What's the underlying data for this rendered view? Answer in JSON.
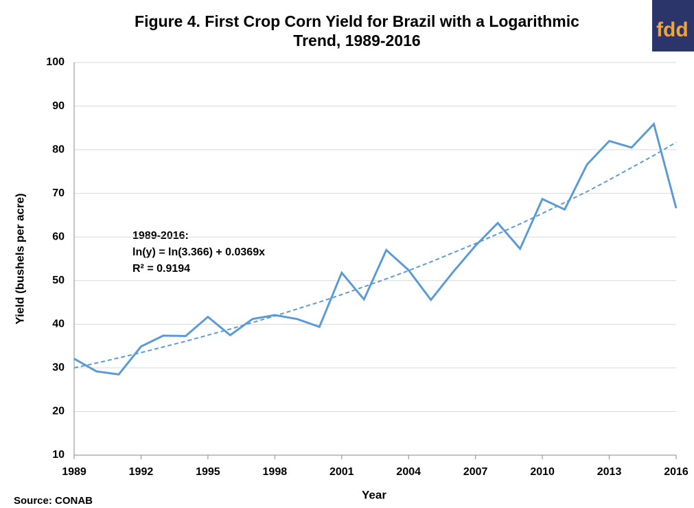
{
  "chart_data": {
    "type": "line",
    "title": [
      "Figure 4. First Crop Corn Yield for Brazil with a Logarithmic",
      "Trend, 1989-2016"
    ],
    "x_label": "Year",
    "y_label": "Yield (bushels per acre)",
    "annotation": [
      "1989-2016:",
      "ln(y) = ln(3.366) + 0.0369x",
      "R² = 0.9194"
    ],
    "source": "Source: CONAB",
    "logo": "fdd",
    "x": [
      1989,
      1990,
      1991,
      1992,
      1993,
      1994,
      1995,
      1996,
      1997,
      1998,
      1999,
      2000,
      2001,
      2002,
      2003,
      2004,
      2005,
      2006,
      2007,
      2008,
      2009,
      2010,
      2011,
      2012,
      2013,
      2014,
      2015,
      2016
    ],
    "series": [
      {
        "color": "#5b9bd5",
        "dashed": false,
        "values": [
          32.1,
          29.2,
          28.5,
          34.9,
          37.4,
          37.3,
          41.7,
          37.5,
          41.2,
          42.1,
          41.2,
          39.4,
          51.8,
          45.7,
          57.0,
          52.4,
          45.6,
          52.0,
          58.0,
          63.2,
          57.3,
          68.7,
          66.3,
          76.6,
          82.0,
          80.5,
          85.9,
          66.6
        ]
      },
      {
        "color": "#5b9bd5",
        "dashed": true,
        "values": [
          30.0,
          31.1,
          32.3,
          33.5,
          34.8,
          36.1,
          37.5,
          38.9,
          40.4,
          41.9,
          43.5,
          45.1,
          46.8,
          48.6,
          50.4,
          52.3,
          54.3,
          56.4,
          58.5,
          60.7,
          63.0,
          65.4,
          67.9,
          70.4,
          73.1,
          75.9,
          78.7,
          81.7
        ]
      }
    ],
    "xlim": [
      1989,
      2016
    ],
    "xticks": [
      1989,
      1992,
      1995,
      1998,
      2001,
      2004,
      2007,
      2010,
      2013,
      2016
    ],
    "ylim": [
      10,
      100
    ],
    "yticks": [
      10,
      20,
      30,
      40,
      50,
      60,
      70,
      80,
      90,
      100
    ],
    "grid": true
  }
}
